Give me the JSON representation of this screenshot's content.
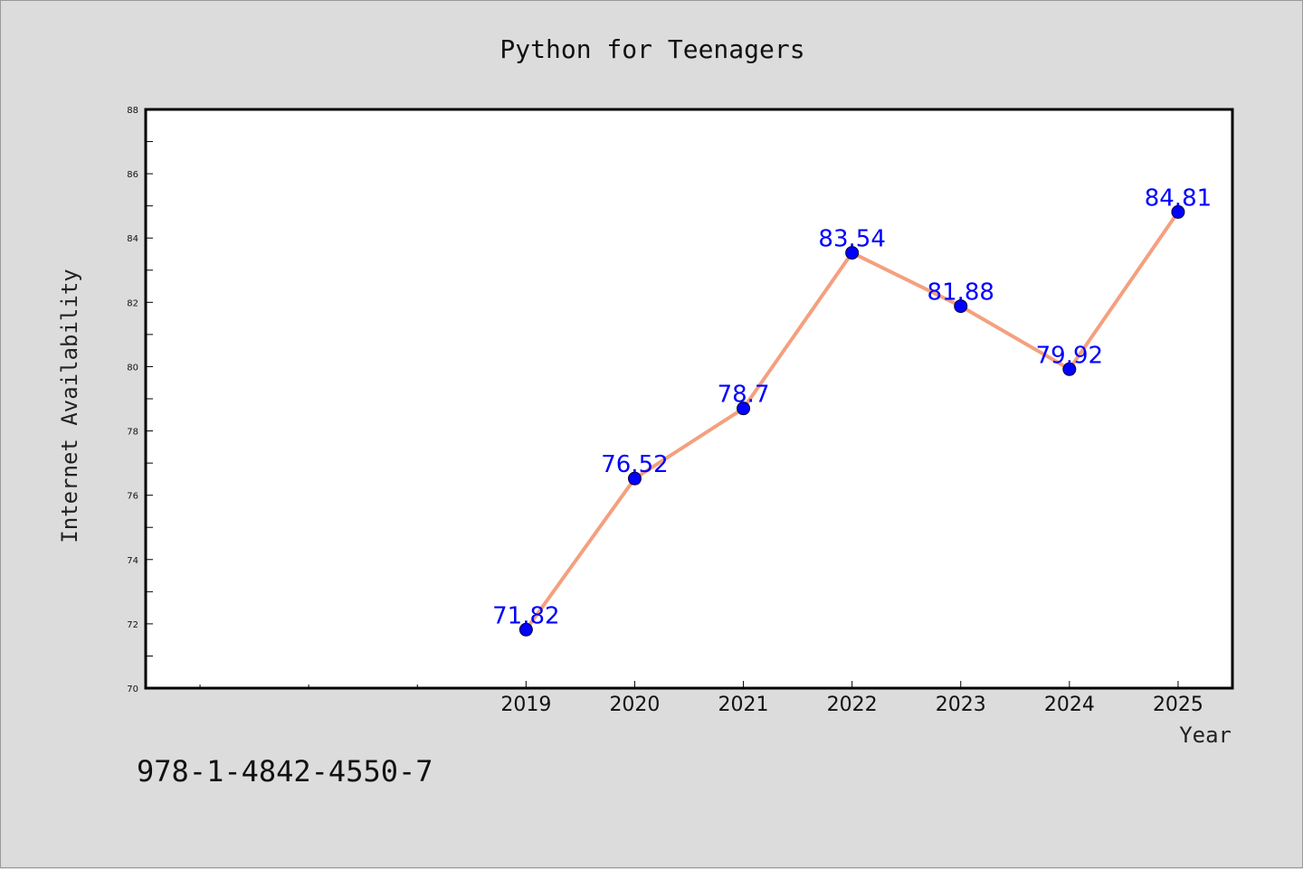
{
  "chart_data": {
    "type": "line",
    "title": "Python for Teenagers",
    "xlabel": "Year",
    "ylabel": "Internet Availability",
    "x": [
      2019,
      2020,
      2021,
      2022,
      2023,
      2024,
      2025
    ],
    "series": [
      {
        "values": [
          71.82,
          76.52,
          78.7,
          83.54,
          81.88,
          79.92,
          84.81
        ],
        "data_labels": [
          "71.82",
          "76.52",
          "78.7",
          "83.54",
          "81.88",
          "79.92",
          "84.81"
        ]
      }
    ],
    "ylim": [
      70,
      88
    ],
    "yticks": [
      70,
      72,
      74,
      76,
      78,
      80,
      82,
      84,
      86,
      88
    ],
    "xlim": [
      2015.5,
      2025.5
    ],
    "xtick_labels": [
      "2019",
      "2020",
      "2021",
      "2022",
      "2023",
      "2024",
      "2025"
    ],
    "grid": false,
    "colors": {
      "line": "#f4a07f",
      "marker": "#0000ff",
      "label": "#0000ff",
      "background": "#dcdcdc",
      "plot_area": "#ffffff"
    }
  },
  "footer": {
    "isbn": "978-1-4842-4550-7"
  }
}
